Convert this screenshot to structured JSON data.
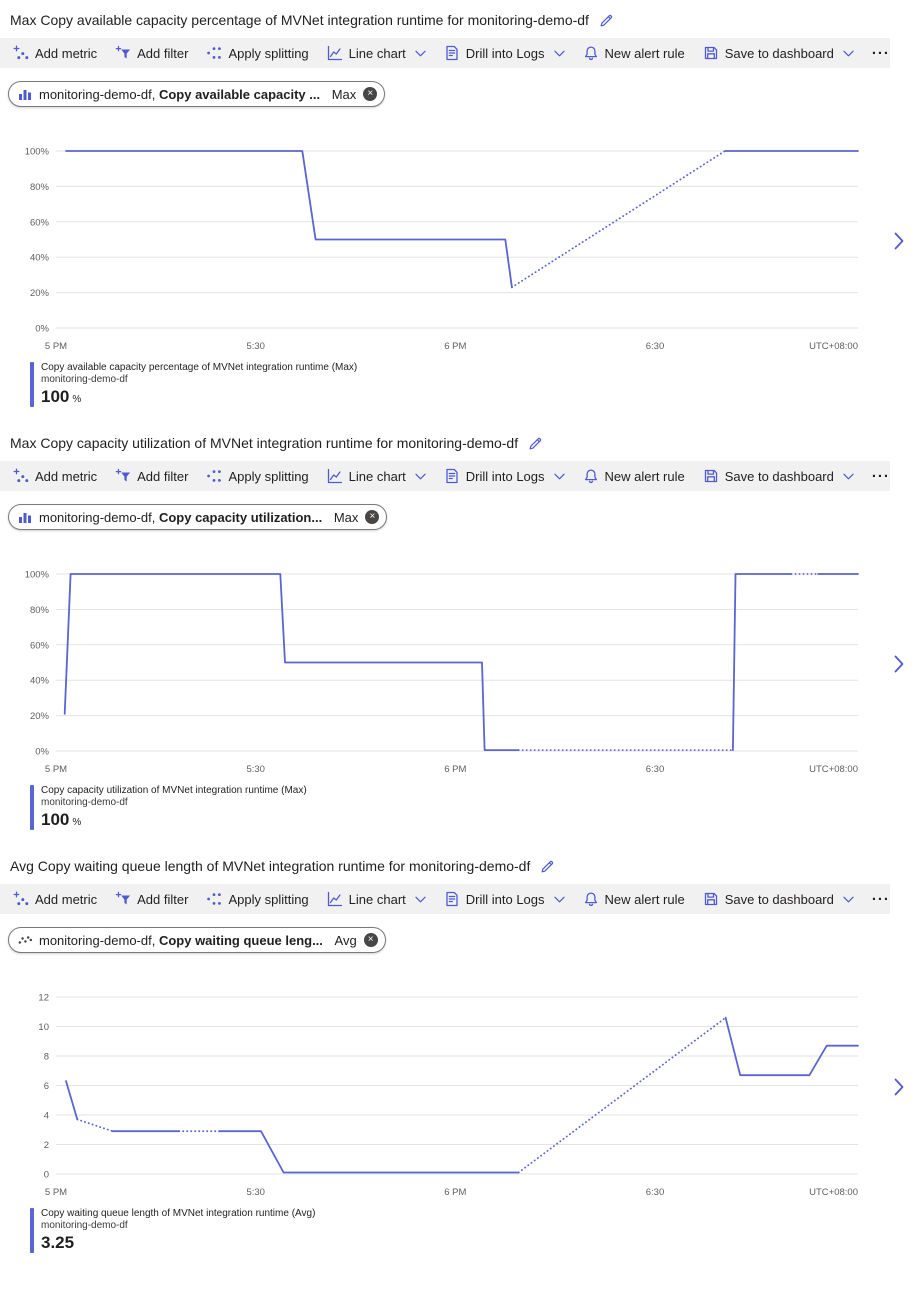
{
  "colors": {
    "line": "#5A64D2",
    "accent": "#4E5BD0",
    "toolbar_bg": "#F2F1F1",
    "grid": "#E3E3E3",
    "tick_text": "#605E5C",
    "text": "#201F1E"
  },
  "icons": {
    "close": "×",
    "more": "···"
  },
  "toolbar": {
    "add_metric": "Add metric",
    "add_filter": "Add filter",
    "apply_splitting": "Apply splitting",
    "line_chart": "Line chart",
    "drill_into_logs": "Drill into Logs",
    "new_alert_rule": "New alert rule",
    "save_to_dashboard": "Save to dashboard"
  },
  "sections": [
    {
      "title": "Max Copy available capacity percentage of MVNet integration runtime for monitoring-demo-df",
      "pill": {
        "icon": "bar-chart-icon",
        "resource": "monitoring-demo-df,",
        "metric": "Copy available capacity ...",
        "aggregation": "Max"
      },
      "legend": {
        "metric": "Copy available capacity percentage of MVNet integration runtime (Max)",
        "resource": "monitoring-demo-df",
        "value": "100",
        "unit": "%"
      }
    },
    {
      "title": "Max Copy capacity utilization of MVNet integration runtime for monitoring-demo-df",
      "pill": {
        "icon": "bar-chart-icon",
        "resource": "monitoring-demo-df,",
        "metric": "Copy capacity utilization...",
        "aggregation": "Max"
      },
      "legend": {
        "metric": "Copy capacity utilization of MVNet integration runtime (Max)",
        "resource": "monitoring-demo-df",
        "value": "100",
        "unit": "%"
      }
    },
    {
      "title": "Avg Copy waiting queue length of MVNet integration runtime for monitoring-demo-df",
      "pill": {
        "icon": "scatter-icon",
        "resource": "monitoring-demo-df,",
        "metric": "Copy waiting queue leng...",
        "aggregation": "Avg"
      },
      "legend": {
        "metric": "Copy waiting queue length of MVNet integration runtime (Avg)",
        "resource": "monitoring-demo-df",
        "value": "3.25",
        "unit": ""
      }
    }
  ],
  "chart_data": [
    {
      "type": "line",
      "title": "Max Copy available capacity percentage of MVNet integration runtime for monitoring-demo-df",
      "x_unit": "minutes after 5 PM",
      "x_max": 120.5,
      "y_min": 0,
      "y_max": 100,
      "grid": true,
      "y_ticks": [
        {
          "value": 100,
          "label": "100%"
        },
        {
          "value": 80,
          "label": "80%"
        },
        {
          "value": 60,
          "label": "60%"
        },
        {
          "value": 40,
          "label": "40%"
        },
        {
          "value": 20,
          "label": "20%"
        },
        {
          "value": 0,
          "label": "0%"
        }
      ],
      "x_ticks": [
        {
          "minute": 0,
          "label": "5 PM"
        },
        {
          "minute": 30,
          "label": "5:30"
        },
        {
          "minute": 60,
          "label": "6 PM"
        },
        {
          "minute": 90,
          "label": "6:30"
        }
      ],
      "x_right_label": "UTC+08:00",
      "series": [
        {
          "name": "Copy available capacity percentage of MVNet integration runtime (Max)",
          "segments": [
            {
              "style": "solid",
              "points": [
                [
                  1.5,
                  100
                ],
                [
                  37,
                  100
                ],
                [
                  39,
                  50
                ],
                [
                  67.5,
                  50
                ],
                [
                  68.5,
                  23
                ]
              ]
            },
            {
              "style": "dotted",
              "points": [
                [
                  68.5,
                  23
                ],
                [
                  100.5,
                  100
                ]
              ]
            },
            {
              "style": "solid",
              "points": [
                [
                  100.5,
                  100
                ],
                [
                  120.5,
                  100
                ]
              ]
            }
          ]
        }
      ]
    },
    {
      "type": "line",
      "title": "Max Copy capacity utilization of MVNet integration runtime for monitoring-demo-df",
      "x_unit": "minutes after 5 PM",
      "x_max": 120.5,
      "y_min": 0,
      "y_max": 100,
      "grid": true,
      "y_ticks": [
        {
          "value": 100,
          "label": "100%"
        },
        {
          "value": 80,
          "label": "80%"
        },
        {
          "value": 60,
          "label": "60%"
        },
        {
          "value": 40,
          "label": "40%"
        },
        {
          "value": 20,
          "label": "20%"
        },
        {
          "value": 0,
          "label": "0%"
        }
      ],
      "x_ticks": [
        {
          "minute": 0,
          "label": "5 PM"
        },
        {
          "minute": 30,
          "label": "5:30"
        },
        {
          "minute": 60,
          "label": "6 PM"
        },
        {
          "minute": 90,
          "label": "6:30"
        }
      ],
      "x_right_label": "UTC+08:00",
      "series": [
        {
          "name": "Copy capacity utilization of MVNet integration runtime (Max)",
          "segments": [
            {
              "style": "solid",
              "points": [
                [
                  1.3,
                  21
                ],
                [
                  2.2,
                  100
                ],
                [
                  33.7,
                  100
                ],
                [
                  34.4,
                  50
                ],
                [
                  64,
                  50
                ],
                [
                  64.4,
                  0.5
                ],
                [
                  69.5,
                  0.5
                ]
              ]
            },
            {
              "style": "dotted",
              "points": [
                [
                  69.5,
                  0.5
                ],
                [
                  101.7,
                  0.5
                ]
              ]
            },
            {
              "style": "solid",
              "points": [
                [
                  101.7,
                  0.5
                ],
                [
                  102.1,
                  100
                ],
                [
                  110.5,
                  100
                ]
              ]
            },
            {
              "style": "dotted",
              "points": [
                [
                  110.5,
                  100
                ],
                [
                  114.5,
                  100
                ]
              ]
            },
            {
              "style": "solid",
              "points": [
                [
                  114.5,
                  100
                ],
                [
                  120.5,
                  100
                ]
              ]
            }
          ]
        }
      ]
    },
    {
      "type": "line",
      "title": "Avg Copy waiting queue length of MVNet integration runtime for monitoring-demo-df",
      "x_unit": "minutes after 5 PM",
      "x_max": 120.5,
      "y_min": 0,
      "y_max": 12,
      "grid": true,
      "y_ticks": [
        {
          "value": 12,
          "label": "12"
        },
        {
          "value": 10,
          "label": "10"
        },
        {
          "value": 8,
          "label": "8"
        },
        {
          "value": 6,
          "label": "6"
        },
        {
          "value": 4,
          "label": "4"
        },
        {
          "value": 2,
          "label": "2"
        },
        {
          "value": 0,
          "label": "0"
        }
      ],
      "x_ticks": [
        {
          "minute": 0,
          "label": "5 PM"
        },
        {
          "minute": 30,
          "label": "5:30"
        },
        {
          "minute": 60,
          "label": "6 PM"
        },
        {
          "minute": 90,
          "label": "6:30"
        }
      ],
      "x_right_label": "UTC+08:00",
      "series": [
        {
          "name": "Copy waiting queue length of MVNet integration runtime (Avg)",
          "segments": [
            {
              "style": "solid",
              "points": [
                [
                  1.5,
                  6.3
                ],
                [
                  3.2,
                  3.7
                ]
              ]
            },
            {
              "style": "dotted",
              "points": [
                [
                  3.2,
                  3.7
                ],
                [
                  8.5,
                  2.9
                ]
              ]
            },
            {
              "style": "solid",
              "points": [
                [
                  8.5,
                  2.9
                ],
                [
                  18.5,
                  2.9
                ]
              ]
            },
            {
              "style": "dotted",
              "points": [
                [
                  18.5,
                  2.9
                ],
                [
                  24.5,
                  2.9
                ]
              ]
            },
            {
              "style": "solid",
              "points": [
                [
                  24.5,
                  2.9
                ],
                [
                  30.8,
                  2.9
                ],
                [
                  34.2,
                  0.1
                ],
                [
                  69.5,
                  0.1
                ]
              ]
            },
            {
              "style": "dotted",
              "points": [
                [
                  69.5,
                  0.1
                ],
                [
                  100.6,
                  10.6
                ]
              ]
            },
            {
              "style": "solid",
              "points": [
                [
                  100.6,
                  10.6
                ],
                [
                  102.8,
                  6.7
                ],
                [
                  113.2,
                  6.7
                ],
                [
                  115.8,
                  8.7
                ],
                [
                  120.5,
                  8.7
                ]
              ]
            }
          ]
        }
      ]
    }
  ]
}
